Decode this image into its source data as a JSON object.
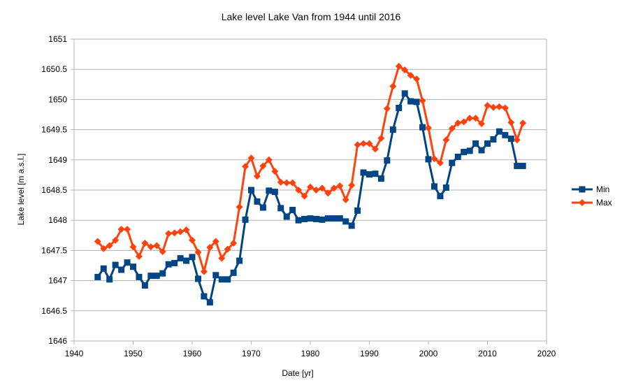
{
  "chart_data": {
    "type": "line",
    "title": "Lake level Lake Van from 1944 until 2016",
    "xlabel": "Date [yr]",
    "ylabel": "Lake level [m a.s.l.]",
    "xlim": [
      1940,
      2020
    ],
    "ylim": [
      1646,
      1651
    ],
    "xticks": [
      1940,
      1950,
      1960,
      1970,
      1980,
      1990,
      2000,
      2010,
      2020
    ],
    "yticks": [
      1646,
      1646.5,
      1647,
      1647.5,
      1648,
      1648.5,
      1649,
      1649.5,
      1650,
      1650.5,
      1651
    ],
    "grid": true,
    "legend_position": "right",
    "x": [
      1944,
      1945,
      1946,
      1947,
      1948,
      1949,
      1950,
      1951,
      1952,
      1953,
      1954,
      1955,
      1956,
      1957,
      1958,
      1959,
      1960,
      1961,
      1962,
      1963,
      1964,
      1965,
      1966,
      1967,
      1968,
      1969,
      1970,
      1971,
      1972,
      1973,
      1974,
      1975,
      1976,
      1977,
      1978,
      1979,
      1980,
      1981,
      1982,
      1983,
      1984,
      1985,
      1986,
      1987,
      1988,
      1989,
      1990,
      1991,
      1992,
      1993,
      1994,
      1995,
      1996,
      1997,
      1998,
      1999,
      2000,
      2001,
      2002,
      2003,
      2004,
      2005,
      2006,
      2007,
      2008,
      2009,
      2010,
      2011,
      2012,
      2013,
      2014,
      2015,
      2016
    ],
    "series": [
      {
        "name": "Min",
        "color": "#004586",
        "marker": "square",
        "values": [
          1647.06,
          1647.2,
          1647.02,
          1647.26,
          1647.18,
          1647.3,
          1647.23,
          1647.06,
          1646.92,
          1647.08,
          1647.08,
          1647.12,
          1647.27,
          1647.29,
          1647.37,
          1647.33,
          1647.39,
          1647.03,
          1646.74,
          1646.64,
          1647.09,
          1647.02,
          1647.02,
          1647.13,
          1647.33,
          1648.01,
          1648.5,
          1648.31,
          1648.21,
          1648.49,
          1648.47,
          1648.2,
          1648.06,
          1648.17,
          1648.0,
          1648.02,
          1648.03,
          1648.02,
          1648.01,
          1648.03,
          1648.03,
          1648.03,
          1647.98,
          1647.91,
          1648.16,
          1648.79,
          1648.76,
          1648.77,
          1648.69,
          1648.99,
          1649.5,
          1649.86,
          1650.1,
          1649.97,
          1649.96,
          1649.54,
          1649.01,
          1648.56,
          1648.4,
          1648.54,
          1648.95,
          1649.05,
          1649.13,
          1649.15,
          1649.27,
          1649.16,
          1649.27,
          1649.34,
          1649.47,
          1649.41,
          1649.35,
          1648.9,
          1648.9
        ]
      },
      {
        "name": "Max",
        "color": "#ff420e",
        "marker": "diamond",
        "values": [
          1647.65,
          1647.53,
          1647.58,
          1647.67,
          1647.85,
          1647.85,
          1647.56,
          1647.4,
          1647.62,
          1647.56,
          1647.58,
          1647.48,
          1647.78,
          1647.79,
          1647.81,
          1647.84,
          1647.67,
          1647.47,
          1647.15,
          1647.55,
          1647.65,
          1647.37,
          1647.52,
          1647.62,
          1648.22,
          1648.89,
          1649.03,
          1648.73,
          1648.9,
          1649.0,
          1648.81,
          1648.63,
          1648.62,
          1648.62,
          1648.5,
          1648.4,
          1648.55,
          1648.5,
          1648.53,
          1648.45,
          1648.53,
          1648.57,
          1648.34,
          1648.58,
          1649.25,
          1649.27,
          1649.27,
          1649.18,
          1649.36,
          1649.85,
          1650.22,
          1650.55,
          1650.49,
          1650.4,
          1650.34,
          1649.98,
          1649.53,
          1649.02,
          1648.95,
          1649.33,
          1649.52,
          1649.61,
          1649.63,
          1649.69,
          1649.69,
          1649.6,
          1649.9,
          1649.87,
          1649.88,
          1649.86,
          1649.62,
          1649.33,
          1649.61
        ]
      }
    ]
  }
}
